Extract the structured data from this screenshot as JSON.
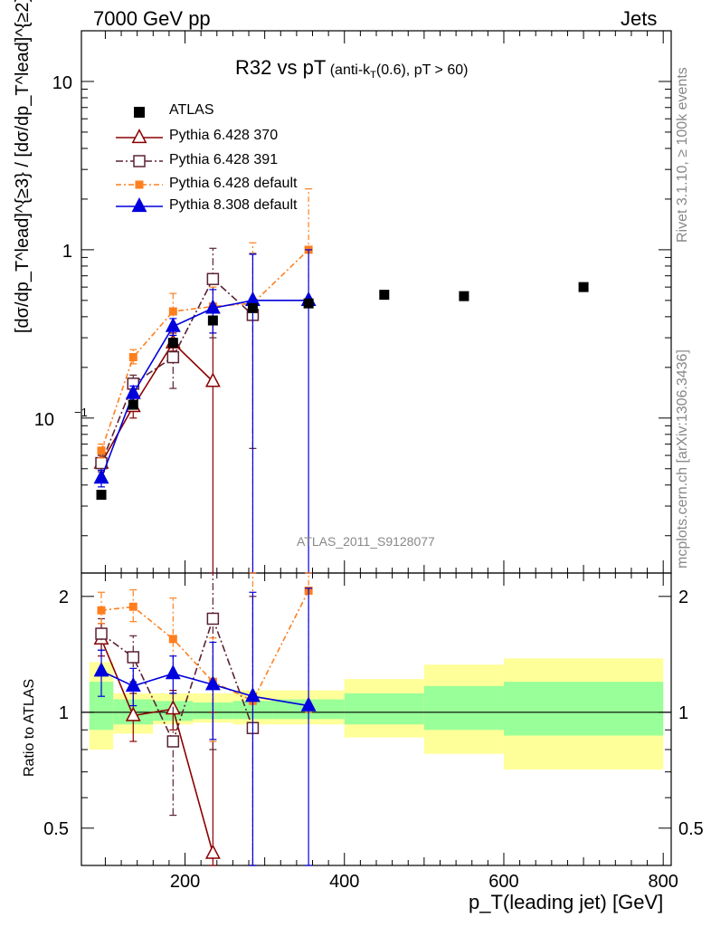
{
  "header": {
    "left": "7000 GeV pp",
    "right": "Jets"
  },
  "title": {
    "main": "R32 vs pT",
    "detail_prefix": "(anti-k",
    "detail_sub": "T",
    "detail_suffix": "(0.6), pT > 60)"
  },
  "side_labels": {
    "rivet": "Rivet 3.1.10, ≥ 100k events",
    "mcplots": "mcplots.cern.ch [arXiv:1306.3436]"
  },
  "watermark": "ATLAS_2011_S9128077",
  "ylabel_main": "[dσ/dp_T^lead]^{≥3} / [dσ/dp_T^lead]^{≥2}",
  "ylabel_ratio": "Ratio to ATLAS",
  "xlabel": "p_T(leading jet) [GeV]",
  "legend": [
    {
      "label": "ATLAS"
    },
    {
      "label": "Pythia 6.428 370"
    },
    {
      "label": "Pythia 6.428 391"
    },
    {
      "label": "Pythia 6.428 default"
    },
    {
      "label": "Pythia 8.308 default"
    }
  ],
  "colors": {
    "atlas": "#000000",
    "p370": "#8b0000",
    "p391": "#5b2233",
    "pdef": "#ff7f1e",
    "p8": "#0000dd",
    "band_inner": "#99ff99",
    "band_outer": "#ffff99"
  },
  "chart_data": {
    "type": "scatter",
    "x_axis": {
      "label": "p_T(leading jet) [GeV]",
      "range": [
        70,
        810
      ],
      "ticks": [
        200,
        400,
        600,
        800
      ]
    },
    "y_axis_main": {
      "scale": "log",
      "range": [
        0.012,
        20
      ],
      "ticks": [
        "10^{-1}",
        "1",
        "10"
      ]
    },
    "y_axis_ratio": {
      "range": [
        0.4,
        2.3
      ],
      "ticks": [
        "0.5",
        "1",
        "2"
      ]
    },
    "atlas": {
      "x": [
        95,
        135,
        185,
        235,
        285,
        355,
        450,
        550,
        700
      ],
      "y": [
        0.035,
        0.12,
        0.28,
        0.38,
        0.45,
        0.48,
        0.54,
        0.53,
        0.6
      ],
      "bins": [
        [
          80,
          110
        ],
        [
          110,
          160
        ],
        [
          160,
          210
        ],
        [
          210,
          260
        ],
        [
          260,
          310
        ],
        [
          310,
          400
        ],
        [
          400,
          500
        ],
        [
          500,
          600
        ],
        [
          600,
          800
        ]
      ],
      "ratio_band_inner": [
        [
          0.9,
          1.2
        ],
        [
          0.93,
          1.08
        ],
        [
          0.95,
          1.07
        ],
        [
          0.96,
          1.06
        ],
        [
          0.96,
          1.07
        ],
        [
          0.96,
          1.08
        ],
        [
          0.93,
          1.12
        ],
        [
          0.9,
          1.17
        ],
        [
          0.87,
          1.2
        ]
      ],
      "ratio_band_outer": [
        [
          0.8,
          1.35
        ],
        [
          0.88,
          1.12
        ],
        [
          0.93,
          1.12
        ],
        [
          0.94,
          1.12
        ],
        [
          0.93,
          1.14
        ],
        [
          0.93,
          1.14
        ],
        [
          0.86,
          1.22
        ],
        [
          0.78,
          1.33
        ],
        [
          0.71,
          1.38
        ]
      ]
    },
    "series": [
      {
        "name": "Pythia 6.428 370",
        "x": [
          95,
          135,
          185,
          235
        ],
        "y": [
          0.054,
          0.117,
          0.28,
          0.165
        ],
        "ylo": [
          0.048,
          0.1,
          0.25,
          0.001
        ],
        "yhi": [
          0.06,
          0.135,
          0.32,
          0.4
        ],
        "ratio": [
          1.55,
          0.98,
          1.02,
          0.43
        ],
        "rlo": [
          1.4,
          0.84,
          0.9,
          0.01
        ],
        "rhi": [
          1.7,
          1.12,
          1.14,
          1.0
        ]
      },
      {
        "name": "Pythia 6.428 391",
        "x": [
          95,
          135,
          185,
          235,
          285
        ],
        "y": [
          0.054,
          0.16,
          0.23,
          0.67,
          0.41
        ],
        "ylo": [
          0.048,
          0.14,
          0.15,
          0.3,
          0.066
        ],
        "yhi": [
          0.06,
          0.18,
          0.31,
          1.02,
          0.95
        ],
        "ratio": [
          1.6,
          1.39,
          0.84,
          1.75,
          0.91
        ],
        "rlo": [
          1.45,
          1.2,
          0.54,
          0.8,
          0.16
        ],
        "rhi": [
          1.75,
          1.58,
          1.12,
          2.7,
          2.0
        ]
      },
      {
        "name": "Pythia 6.428 default",
        "x": [
          95,
          135,
          185,
          235,
          285,
          355
        ],
        "y": [
          0.064,
          0.23,
          0.43,
          0.46,
          0.48,
          1.0
        ],
        "ylo": [
          0.058,
          0.21,
          0.36,
          0.32,
          0.001,
          0.48
        ],
        "yhi": [
          0.07,
          0.255,
          0.55,
          0.6,
          1.1,
          2.3
        ],
        "ratio": [
          1.84,
          1.88,
          1.55,
          1.2,
          1.07,
          2.07
        ],
        "rlo": [
          1.7,
          1.72,
          1.27,
          0.84,
          0.01,
          1.0
        ],
        "rhi": [
          2.05,
          2.08,
          1.98,
          1.56,
          2.4,
          4.5
        ]
      },
      {
        "name": "Pythia 8.308 default",
        "x": [
          95,
          135,
          185,
          235,
          285,
          355
        ],
        "y": [
          0.044,
          0.14,
          0.35,
          0.45,
          0.5,
          0.5
        ],
        "ylo": [
          0.039,
          0.125,
          0.31,
          0.32,
          0.001,
          0.001
        ],
        "yhi": [
          0.049,
          0.155,
          0.39,
          0.58,
          0.94,
          1.0
        ],
        "ratio": [
          1.28,
          1.17,
          1.26,
          1.18,
          1.1,
          1.04
        ],
        "rlo": [
          1.1,
          1.04,
          1.12,
          0.85,
          0.01,
          0.01
        ],
        "rhi": [
          1.45,
          1.3,
          1.4,
          1.52,
          2.05,
          2.1
        ]
      }
    ]
  }
}
